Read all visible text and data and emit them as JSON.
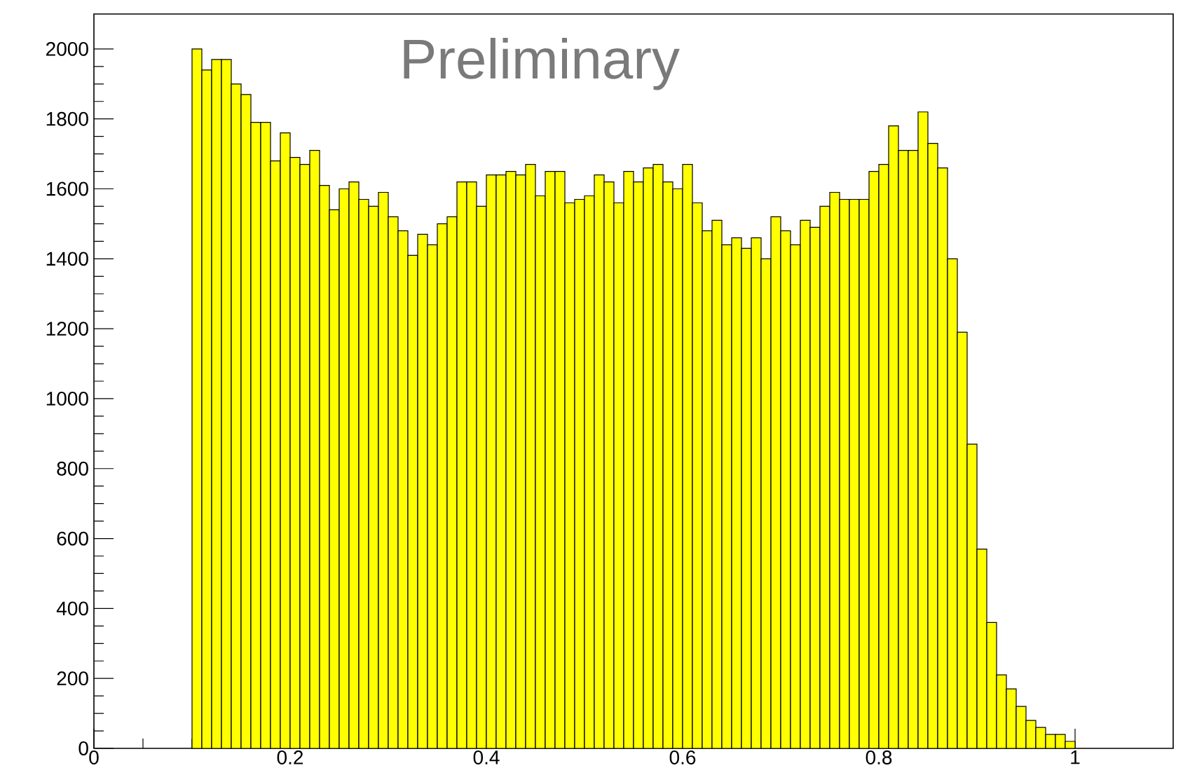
{
  "chart_data": {
    "type": "histogram",
    "bins": [
      0.1,
      0.11,
      0.12,
      0.13,
      0.14,
      0.15,
      0.16,
      0.17,
      0.18,
      0.19,
      0.2,
      0.21,
      0.22,
      0.23,
      0.24,
      0.25,
      0.26,
      0.27,
      0.28,
      0.29,
      0.3,
      0.31,
      0.32,
      0.33,
      0.34,
      0.35,
      0.36,
      0.37,
      0.38,
      0.39,
      0.4,
      0.41,
      0.42,
      0.43,
      0.44,
      0.45,
      0.46,
      0.47,
      0.48,
      0.49,
      0.5,
      0.51,
      0.52,
      0.53,
      0.54,
      0.55,
      0.56,
      0.57,
      0.58,
      0.59,
      0.6,
      0.61,
      0.62,
      0.63,
      0.64,
      0.65,
      0.66,
      0.67,
      0.68,
      0.69,
      0.7,
      0.71,
      0.72,
      0.73,
      0.74,
      0.75,
      0.76,
      0.77,
      0.78,
      0.79,
      0.8,
      0.81,
      0.82,
      0.83,
      0.84,
      0.85,
      0.86,
      0.87,
      0.88,
      0.89,
      0.9,
      0.91,
      0.92,
      0.93,
      0.94,
      0.95,
      0.96,
      0.97,
      0.98,
      0.99,
      1.0
    ],
    "values": [
      2000,
      1940,
      1970,
      1970,
      1900,
      1870,
      1790,
      1790,
      1680,
      1760,
      1690,
      1670,
      1710,
      1610,
      1540,
      1600,
      1620,
      1570,
      1550,
      1590,
      1520,
      1480,
      1410,
      1470,
      1440,
      1500,
      1520,
      1620,
      1620,
      1550,
      1640,
      1640,
      1650,
      1640,
      1670,
      1580,
      1650,
      1650,
      1560,
      1570,
      1580,
      1640,
      1620,
      1560,
      1650,
      1620,
      1660,
      1670,
      1620,
      1600,
      1670,
      1560,
      1480,
      1510,
      1440,
      1460,
      1430,
      1460,
      1400,
      1520,
      1480,
      1440,
      1510,
      1490,
      1550,
      1590,
      1570,
      1570,
      1570,
      1650,
      1670,
      1780,
      1710,
      1710,
      1820,
      1730,
      1660,
      1400,
      1190,
      870,
      570,
      360,
      210,
      170,
      120,
      80,
      60,
      40,
      40,
      20
    ],
    "color": "#ffff00",
    "xlim": [
      0,
      1.1
    ],
    "xticks": [
      0,
      0.2,
      0.4,
      0.6,
      0.8,
      1
    ],
    "ylim": [
      0,
      2100
    ],
    "yticks": [
      0,
      200,
      400,
      600,
      800,
      1000,
      1200,
      1400,
      1600,
      1800,
      2000
    ],
    "grid": false,
    "annotations": [
      "Preliminary"
    ]
  }
}
